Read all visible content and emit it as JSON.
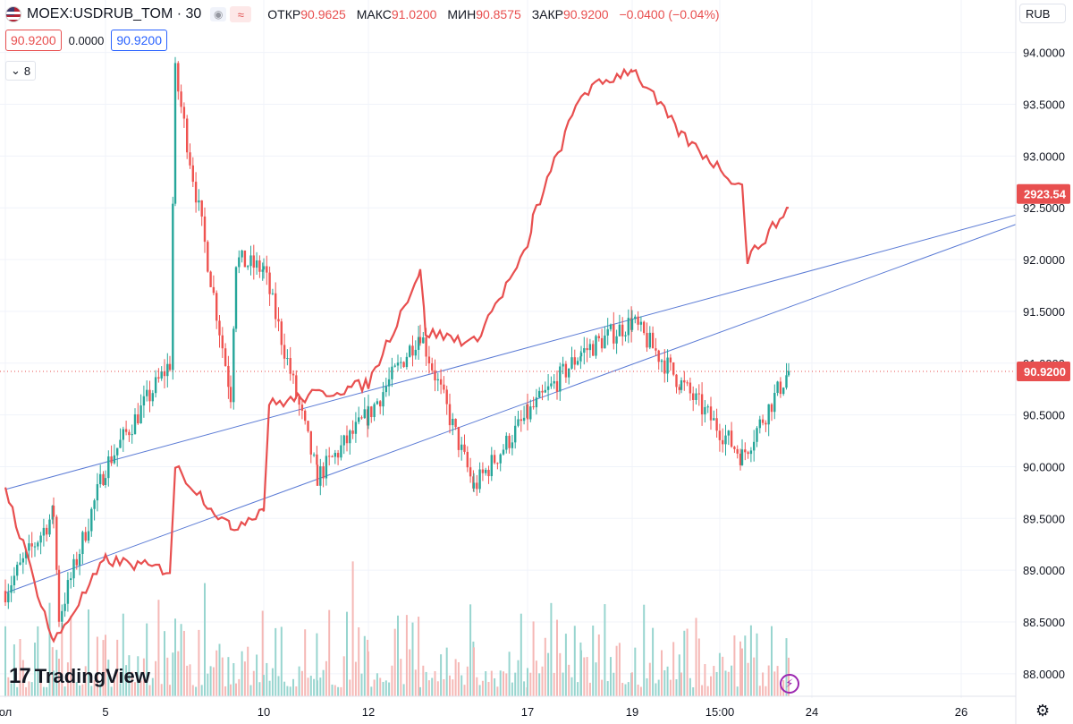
{
  "header": {
    "symbol": "MOEX:USDRUB_TOM · 30",
    "flag_icon": "us-flag-icon",
    "eye_icon": "eye-icon",
    "wave_icon": "compare-wave-icon",
    "wave_glyph": "≈",
    "open_label": "ОТКР",
    "open_value": "90.9625",
    "high_label": "МАКС",
    "high_value": "91.0200",
    "low_label": "МИН",
    "low_value": "90.8575",
    "close_label": "ЗАКР",
    "close_value": "90.9200",
    "change": "−0.0400 (−0.04%)",
    "bid": "90.9200",
    "spread": "0.0000",
    "ask": "90.9200",
    "indicators_count": "8",
    "currency": "RUB"
  },
  "branding": {
    "logo_text": "TradingView",
    "logo_mark": "17"
  },
  "colors": {
    "up": "#26a69a",
    "down": "#ef5350",
    "overlay": "#e84f4f",
    "trend": "#5b7bd5",
    "vol_up": "#98d5cf",
    "vol_down": "#f5b8b6"
  },
  "chart_data": {
    "type": "candlestick",
    "title": "MOEX:USDRUB_TOM · 30",
    "currency": "RUB",
    "ylim": [
      87.8,
      94.2
    ],
    "y_ticks": [
      "94.0000",
      "93.5000",
      "93.0000",
      "92.5000",
      "92.0000",
      "91.5000",
      "91.0000",
      "90.5000",
      "90.0000",
      "89.5000",
      "89.0000",
      "88.5000",
      "88.0000"
    ],
    "x_ticks": [
      "ол",
      "5",
      "10",
      "12",
      "17",
      "19",
      "15:00",
      "24",
      "26"
    ],
    "last_price_label": "90.9200",
    "last_price": 90.92,
    "overlay_label": "2923.54",
    "overlay_last_on_price_scale": 92.53,
    "price_path": [
      {
        "x": "ол",
        "y": 88.8
      },
      {
        "x": "4",
        "y": 89.55
      },
      {
        "x": "4",
        "y": 88.55
      },
      {
        "x": "5",
        "y": 90.0
      },
      {
        "x": "6",
        "y": 91.0
      },
      {
        "x": "6",
        "y": 93.8
      },
      {
        "x": "9",
        "y": 90.7
      },
      {
        "x": "9",
        "y": 92.0
      },
      {
        "x": "10",
        "y": 91.9
      },
      {
        "x": "11",
        "y": 89.9
      },
      {
        "x": "12",
        "y": 90.5
      },
      {
        "x": "13",
        "y": 91.3
      },
      {
        "x": "14",
        "y": 89.8
      },
      {
        "x": "17",
        "y": 90.5
      },
      {
        "x": "18",
        "y": 91.1
      },
      {
        "x": "19",
        "y": 91.4
      },
      {
        "x": "20",
        "y": 90.8
      },
      {
        "x": "21",
        "y": 90.1
      },
      {
        "x": "22",
        "y": 90.92
      }
    ],
    "overlay_series": {
      "name": "comparison",
      "last_value": 2923.54,
      "path": [
        {
          "x": "ол",
          "y": 89.8
        },
        {
          "x": "4",
          "y": 88.3
        },
        {
          "x": "5",
          "y": 89.1
        },
        {
          "x": "6",
          "y": 89.0
        },
        {
          "x": "6",
          "y": 90.0
        },
        {
          "x": "9",
          "y": 89.4
        },
        {
          "x": "10",
          "y": 89.6
        },
        {
          "x": "10",
          "y": 90.6
        },
        {
          "x": "12",
          "y": 90.8
        },
        {
          "x": "13",
          "y": 91.9
        },
        {
          "x": "13",
          "y": 91.3
        },
        {
          "x": "14",
          "y": 91.2
        },
        {
          "x": "17",
          "y": 92.1
        },
        {
          "x": "17",
          "y": 92.4
        },
        {
          "x": "18",
          "y": 93.6
        },
        {
          "x": "19",
          "y": 93.85
        },
        {
          "x": "20",
          "y": 93.2
        },
        {
          "x": "21",
          "y": 92.7
        },
        {
          "x": "21",
          "y": 92.0
        },
        {
          "x": "22",
          "y": 92.5
        }
      ]
    },
    "trendlines": [
      {
        "from": {
          "x": "ол",
          "y": 89.78
        },
        "to": {
          "x": "26+",
          "y": 92.43
        }
      },
      {
        "from": {
          "x": "ол",
          "y": 88.78
        },
        "to": {
          "x": "26+",
          "y": 92.34
        }
      }
    ],
    "volume": {
      "max_label": "",
      "seed": 7
    }
  }
}
